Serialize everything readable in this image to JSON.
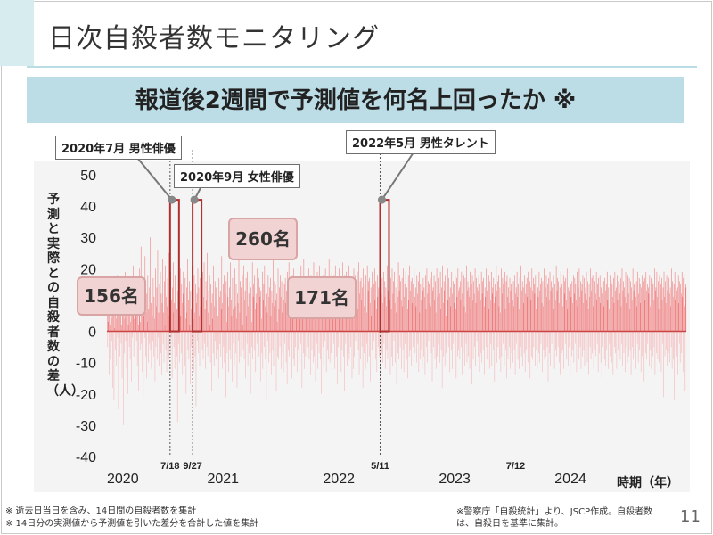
{
  "slide": {
    "title": "日次自殺者数モニタリング",
    "subtitle": "報道後2週間で予測値を何名上回ったか ※",
    "page_number": "11"
  },
  "footnotes": [
    "※ 逝去日当日を含み、14日間の自殺者数を集計",
    "※ 14日分の実測値から予測値を引いた差分を合計した値を集計"
  ],
  "source_note": "※警察庁「自殺統計」より、JSCP作成。自殺者数は、自殺日を基準に集計。",
  "callouts": [
    {
      "label": "2020年7月 男性俳優"
    },
    {
      "label": "2020年9月 女性俳優"
    },
    {
      "label": "2022年5月 男性タレント"
    }
  ],
  "badges": [
    {
      "value": "156名"
    },
    {
      "value": "260名"
    },
    {
      "value": "171名"
    }
  ],
  "colors": {
    "accent_band": "#bcdce6",
    "bar_positive": "#f07f7f",
    "bar_negative": "#f6b8b8",
    "highlight_box": "#b03030",
    "badge_fill": "#f2d3d3"
  },
  "chart_data": {
    "type": "bar",
    "xlabel": "時期（年）",
    "ylabel": "予測と実際との自殺者数の差（人）",
    "ylim": [
      -40,
      50
    ],
    "yticks": [
      50,
      40,
      30,
      20,
      10,
      0,
      -10,
      -20,
      -30,
      -40
    ],
    "x_range": [
      "2020-01-01",
      "2024-12-31"
    ],
    "year_ticks": [
      "2020",
      "2021",
      "2022",
      "2023",
      "2024"
    ],
    "event_dates": [
      {
        "date": "2020-07-18",
        "label": "7/18"
      },
      {
        "date": "2020-09-27",
        "label": "9/27"
      },
      {
        "date": "2022-05-11",
        "label": "5/11"
      },
      {
        "date": "2023-07-12",
        "label": "7/12"
      }
    ],
    "highlight_ranges": [
      {
        "start": "2020-07-18",
        "end": "2020-07-31",
        "height": 42
      },
      {
        "start": "2020-09-27",
        "end": "2020-10-10",
        "height": 42
      },
      {
        "start": "2022-05-11",
        "end": "2022-05-24",
        "height": 42
      }
    ],
    "series": [
      {
        "values_description_free": true,
        "values": [
          12,
          -5,
          3,
          8,
          -14,
          6,
          2,
          -9,
          15,
          4,
          -3,
          7,
          -18,
          10,
          5,
          -22,
          1,
          9,
          -6,
          13,
          -11,
          4,
          18,
          -2,
          7,
          -25,
          3,
          11,
          -8,
          6,
          16,
          -4,
          2,
          -15,
          9,
          5,
          -30,
          12,
          -7,
          4,
          19,
          -3,
          8,
          -12,
          6,
          14,
          -20,
          2,
          10,
          -5,
          17,
          -9,
          3,
          7,
          -16,
          11,
          -2,
          6,
          21,
          -8,
          4,
          13,
          -36,
          5,
          9,
          -3,
          15,
          -11,
          7,
          2,
          -19,
          12,
          20,
          -6,
          3,
          27,
          -4,
          8,
          -13,
          16,
          -21,
          5,
          10,
          -2,
          24,
          -8,
          6,
          -15,
          12,
          3,
          18,
          -10,
          7,
          -4,
          14,
          30,
          -6,
          9,
          -12,
          22,
          5,
          -3,
          17,
          -8,
          11,
          4,
          -16,
          20,
          -5,
          8,
          14,
          -9,
          26,
          -2,
          6,
          -11,
          15,
          3,
          19,
          -7,
          12,
          -14,
          9,
          23,
          -4,
          6,
          -10,
          16,
          2,
          21,
          -6,
          11,
          -13,
          8,
          17,
          -3,
          25,
          -9,
          5,
          13,
          -7,
          19,
          -2,
          10,
          -15,
          14,
          6,
          22,
          -5,
          9,
          -12,
          18,
          3,
          24,
          -8,
          7,
          -29,
          13,
          16,
          -4,
          11,
          -10,
          20,
          5,
          -7,
          15,
          9,
          -14,
          12,
          19,
          -3,
          8,
          -11,
          17,
          4,
          -20,
          14,
          6,
          23,
          -6,
          10,
          -9,
          16,
          2,
          -17,
          13,
          7,
          -5,
          21,
          -10,
          11,
          4,
          -13,
          18,
          6,
          -8,
          15,
          -24,
          9,
          12,
          -3,
          20,
          -7,
          14,
          5,
          -11,
          17,
          8,
          -16,
          13,
          3,
          -6,
          19,
          -9,
          11,
          22,
          -4,
          7,
          -12,
          16,
          10,
          -5,
          25,
          -8,
          6,
          13,
          -14,
          18,
          2,
          -10,
          15,
          9,
          -19,
          12,
          4,
          -7,
          21,
          -11,
          8,
          16,
          -3,
          14,
          -9,
          10,
          20,
          -6,
          5,
          -15,
          17,
          11,
          -4,
          13,
          -8,
          7,
          24,
          -12,
          9,
          15,
          -5,
          18,
          -10,
          6,
          12,
          -21,
          16,
          3,
          -7,
          19,
          11,
          -13,
          8,
          14,
          -6,
          22,
          -9,
          10,
          5,
          -16,
          17,
          7,
          -4,
          13,
          -11,
          20,
          8,
          -7,
          15,
          4,
          -18,
          12,
          9,
          -3,
          23,
          -10,
          6,
          16,
          -8,
          14,
          11,
          -12,
          18,
          2,
          -6,
          21,
          -9,
          10,
          13,
          -15,
          17,
          5,
          -4,
          19,
          -11,
          8,
          12,
          -7,
          16,
          10,
          -20,
          14,
          3,
          -5,
          22,
          -9,
          11,
          15,
          -6,
          18,
          7,
          -13,
          12,
          9,
          -4,
          20,
          -10,
          6,
          17,
          -8,
          14,
          11,
          -16,
          13,
          4,
          -7,
          19,
          -12,
          10,
          15,
          -5,
          21,
          8,
          -9,
          16,
          -22,
          12,
          6,
          -3,
          18,
          -10,
          11,
          14,
          -7,
          17,
          5,
          -14,
          13,
          9,
          -6,
          23,
          -11,
          8,
          16,
          -4,
          15,
          10,
          -19,
          12,
          3,
          -8,
          20,
          -9,
          7,
          14,
          -5,
          18,
          11,
          -12,
          16,
          6,
          -7,
          21,
          -13,
          10,
          15,
          -4,
          17,
          9,
          -10,
          13,
          -17,
          19,
          5,
          -6,
          22,
          -8,
          12,
          16,
          -3,
          14,
          11,
          -15,
          18,
          7,
          -9,
          20,
          -11,
          6,
          13,
          -5,
          17,
          10,
          -13,
          15,
          8,
          -6,
          19,
          -10,
          12,
          16,
          -4,
          21,
          9,
          -18,
          14,
          5,
          -7,
          23,
          -12,
          11,
          15,
          -8,
          17,
          6,
          -11,
          13,
          10,
          -5,
          20,
          -9,
          8,
          16,
          -14,
          18,
          12,
          -6,
          15,
          4,
          -10,
          22,
          -8,
          11,
          14,
          -16,
          17,
          7,
          -4,
          19,
          -12,
          9,
          13,
          -7,
          21,
          10,
          -9,
          16,
          -20,
          15,
          6,
          -5,
          18,
          -11,
          12,
          14,
          -3,
          20,
          8,
          -13,
          17,
          11,
          -6,
          15,
          -9,
          23,
          5,
          -10,
          16,
          12,
          -7,
          19,
          -14,
          9,
          13,
          -4,
          18,
          10,
          -12,
          21,
          7,
          -8,
          15,
          -17,
          11,
          14,
          -5,
          20,
          6,
          -10,
          17,
          9,
          -13,
          16,
          -6,
          22,
          12,
          -8,
          14,
          -19,
          18,
          5,
          -4,
          19,
          11,
          -11,
          15,
          8,
          -7,
          21,
          -9,
          13,
          16,
          -5,
          17,
          10,
          -15,
          14,
          6,
          -12,
          20,
          -8,
          9,
          18,
          -3,
          15,
          11,
          -10,
          19,
          7,
          -6,
          22,
          -14,
          12,
          16,
          -9,
          17,
          10,
          -5,
          14,
          -18,
          20,
          8,
          -7,
          15,
          11,
          -12,
          18,
          6,
          -4,
          21,
          -10,
          13,
          16,
          -8,
          17,
          9,
          -16,
          14,
          5,
          -6,
          19,
          -11,
          12,
          15,
          -3,
          20,
          10,
          -9,
          16,
          7,
          -13,
          18,
          11,
          -5,
          14,
          -8,
          22,
          6,
          -20,
          15,
          12,
          -7,
          17,
          -10,
          9,
          19,
          -4,
          16,
          11,
          -12,
          14,
          8,
          -6,
          21,
          -9,
          13,
          15,
          -5,
          18,
          10,
          -14,
          17,
          7,
          -8,
          20,
          -11,
          12,
          16,
          -3,
          19,
          9,
          -10,
          14,
          6,
          -17,
          15,
          11,
          -7,
          22,
          -9,
          13,
          18,
          -5,
          16,
          10,
          -12,
          17,
          8,
          -6,
          20,
          -13,
          11,
          15,
          -4,
          19,
          12,
          -9,
          14,
          7,
          -15,
          18,
          10,
          -8,
          21,
          -6,
          13,
          16,
          -11,
          17,
          9,
          -5,
          15,
          -19,
          20,
          11,
          -7,
          14,
          8,
          -10,
          18,
          12,
          -4,
          16,
          -13,
          19,
          6,
          -9,
          15,
          10,
          -6,
          21,
          -12,
          13,
          17,
          -8,
          14,
          11,
          -14,
          18,
          7,
          -5,
          20,
          -10,
          12,
          16,
          -3,
          15,
          9,
          -11,
          17,
          8,
          -7,
          19,
          -16,
          13,
          14,
          -5,
          18,
          10,
          -9,
          16,
          6,
          -12,
          20,
          -8,
          11,
          15,
          -4,
          17,
          12,
          -10,
          19,
          7,
          -6,
          14,
          -18,
          21,
          9,
          -8,
          16,
          13,
          -11,
          18,
          5,
          -7,
          15,
          -9,
          20,
          10,
          -5,
          17,
          11,
          -13,
          14,
          8,
          -6,
          19,
          -12,
          12,
          16,
          -4,
          15,
          9,
          -10,
          18,
          7,
          -15,
          17,
          11,
          -8,
          20,
          -6,
          13,
          14,
          -9,
          16,
          10,
          -5,
          19,
          -14,
          12,
          15,
          -7,
          18,
          8,
          -11,
          17,
          6,
          -4,
          21,
          -10,
          13,
          16,
          -8,
          14,
          11,
          -12,
          19,
          7,
          -6,
          15,
          -17,
          18,
          10,
          -9,
          16,
          12,
          -5,
          20,
          -11,
          9,
          17,
          -3,
          14,
          13,
          -8,
          18,
          6,
          -13,
          15,
          10,
          -7,
          19,
          -10,
          12,
          16,
          -6,
          17,
          8,
          -14,
          14,
          11,
          -5,
          20,
          -9,
          13,
          15,
          -8,
          18,
          7,
          -12,
          16,
          10,
          -4,
          19,
          -11,
          12,
          14,
          -6,
          17,
          9,
          -16,
          15,
          11,
          -7,
          21,
          -10,
          13,
          16,
          -5,
          18,
          8,
          -9,
          14,
          6,
          -13,
          20,
          -8,
          12,
          17,
          -4,
          15,
          10,
          -11,
          19,
          7,
          -6,
          16,
          -15,
          18,
          11,
          -9,
          14,
          9,
          -5,
          17,
          -12,
          13,
          15,
          -7,
          20,
          10,
          -10,
          16,
          8,
          -6,
          18,
          -14,
          12,
          14,
          -4,
          19,
          11,
          -9,
          15,
          7,
          -12,
          17,
          10,
          -5,
          21,
          -8,
          13,
          16,
          -11,
          14,
          9,
          -7,
          18,
          -13,
          12,
          15,
          -6,
          17,
          11,
          -10,
          19,
          8,
          -4,
          16,
          -15,
          14,
          10,
          -8,
          20,
          -9,
          13,
          17,
          -5,
          15,
          12,
          -11,
          18,
          7,
          -6,
          16,
          -12,
          14,
          11,
          -7,
          19,
          -10,
          13,
          15,
          -4,
          17,
          9,
          -13,
          16,
          8,
          -6,
          20,
          -9,
          12,
          14,
          -8,
          18,
          11,
          -5,
          15,
          -16,
          17,
          10,
          -7,
          19,
          -11,
          13,
          16,
          -4,
          14,
          12,
          -9,
          18,
          7,
          -12,
          15,
          10,
          -6,
          21,
          -8,
          13,
          17,
          -5,
          16,
          9,
          -10,
          14,
          -14,
          19,
          11,
          -7,
          15,
          8,
          -6,
          18,
          -12,
          12,
          16,
          -4,
          17,
          10,
          -9,
          20,
          7,
          -11,
          14,
          13,
          -5,
          19,
          -15,
          15,
          11,
          -8,
          16,
          9,
          -6,
          18,
          -10,
          12,
          17,
          -4,
          15,
          10,
          -13,
          19,
          8,
          -7,
          14,
          -9,
          20,
          11,
          -5,
          16,
          -12,
          13,
          15,
          -8,
          18,
          9,
          -6,
          17,
          -11,
          12,
          14,
          -4,
          19,
          10,
          -10,
          16,
          7,
          -14,
          15,
          11,
          -5,
          20,
          -9,
          13,
          17,
          -7,
          18,
          8,
          -12,
          14,
          -6,
          16,
          12,
          -8,
          19,
          10,
          -4,
          15,
          -13,
          17,
          11,
          -7,
          18,
          9,
          -10,
          14,
          -15,
          20,
          12,
          -5,
          16,
          8,
          -9,
          17,
          -11,
          13,
          15,
          -6,
          19,
          10,
          -12,
          14,
          7,
          -4,
          18,
          -8,
          12,
          16,
          -10,
          15,
          11,
          -14,
          17,
          9,
          -5,
          19,
          -7,
          13,
          14,
          -12,
          18,
          10,
          -6,
          16,
          -18,
          15,
          12,
          -9,
          17,
          8,
          -4,
          20,
          -11,
          13,
          16,
          -7,
          14,
          11,
          -13,
          19,
          9,
          -5,
          15,
          -10,
          18,
          12,
          -8,
          17,
          7,
          -6,
          16,
          -14,
          14,
          10,
          -5,
          20,
          -9,
          13,
          15,
          -7,
          18,
          11,
          -12,
          16,
          8,
          -4,
          19,
          -10,
          12,
          17,
          -6,
          15,
          9,
          -13,
          14,
          -8,
          18,
          11,
          -5,
          16,
          -16,
          17,
          10,
          -7,
          19,
          -9,
          13,
          15,
          -4,
          14,
          12,
          -11,
          18,
          8,
          -6,
          17,
          -12,
          12,
          16,
          -8,
          15,
          10,
          -5,
          20,
          -14,
          13,
          14,
          -7,
          19,
          11,
          -9,
          16,
          7,
          -10,
          18,
          -6,
          12,
          15,
          -13,
          17,
          10,
          -4,
          14,
          -21,
          19,
          11,
          -8,
          16,
          9,
          -6,
          18,
          -11,
          13,
          15,
          -7,
          17,
          12,
          -10,
          14,
          8,
          -5,
          20,
          -12,
          16,
          11,
          -9,
          15,
          -22,
          19,
          10,
          -6,
          17,
          13,
          -8,
          14,
          -14,
          18,
          9,
          -4,
          16,
          -10,
          15,
          12,
          -7,
          19,
          11,
          -13,
          17,
          -5,
          18,
          8,
          -19,
          15,
          14
        ]
      }
    ]
  }
}
